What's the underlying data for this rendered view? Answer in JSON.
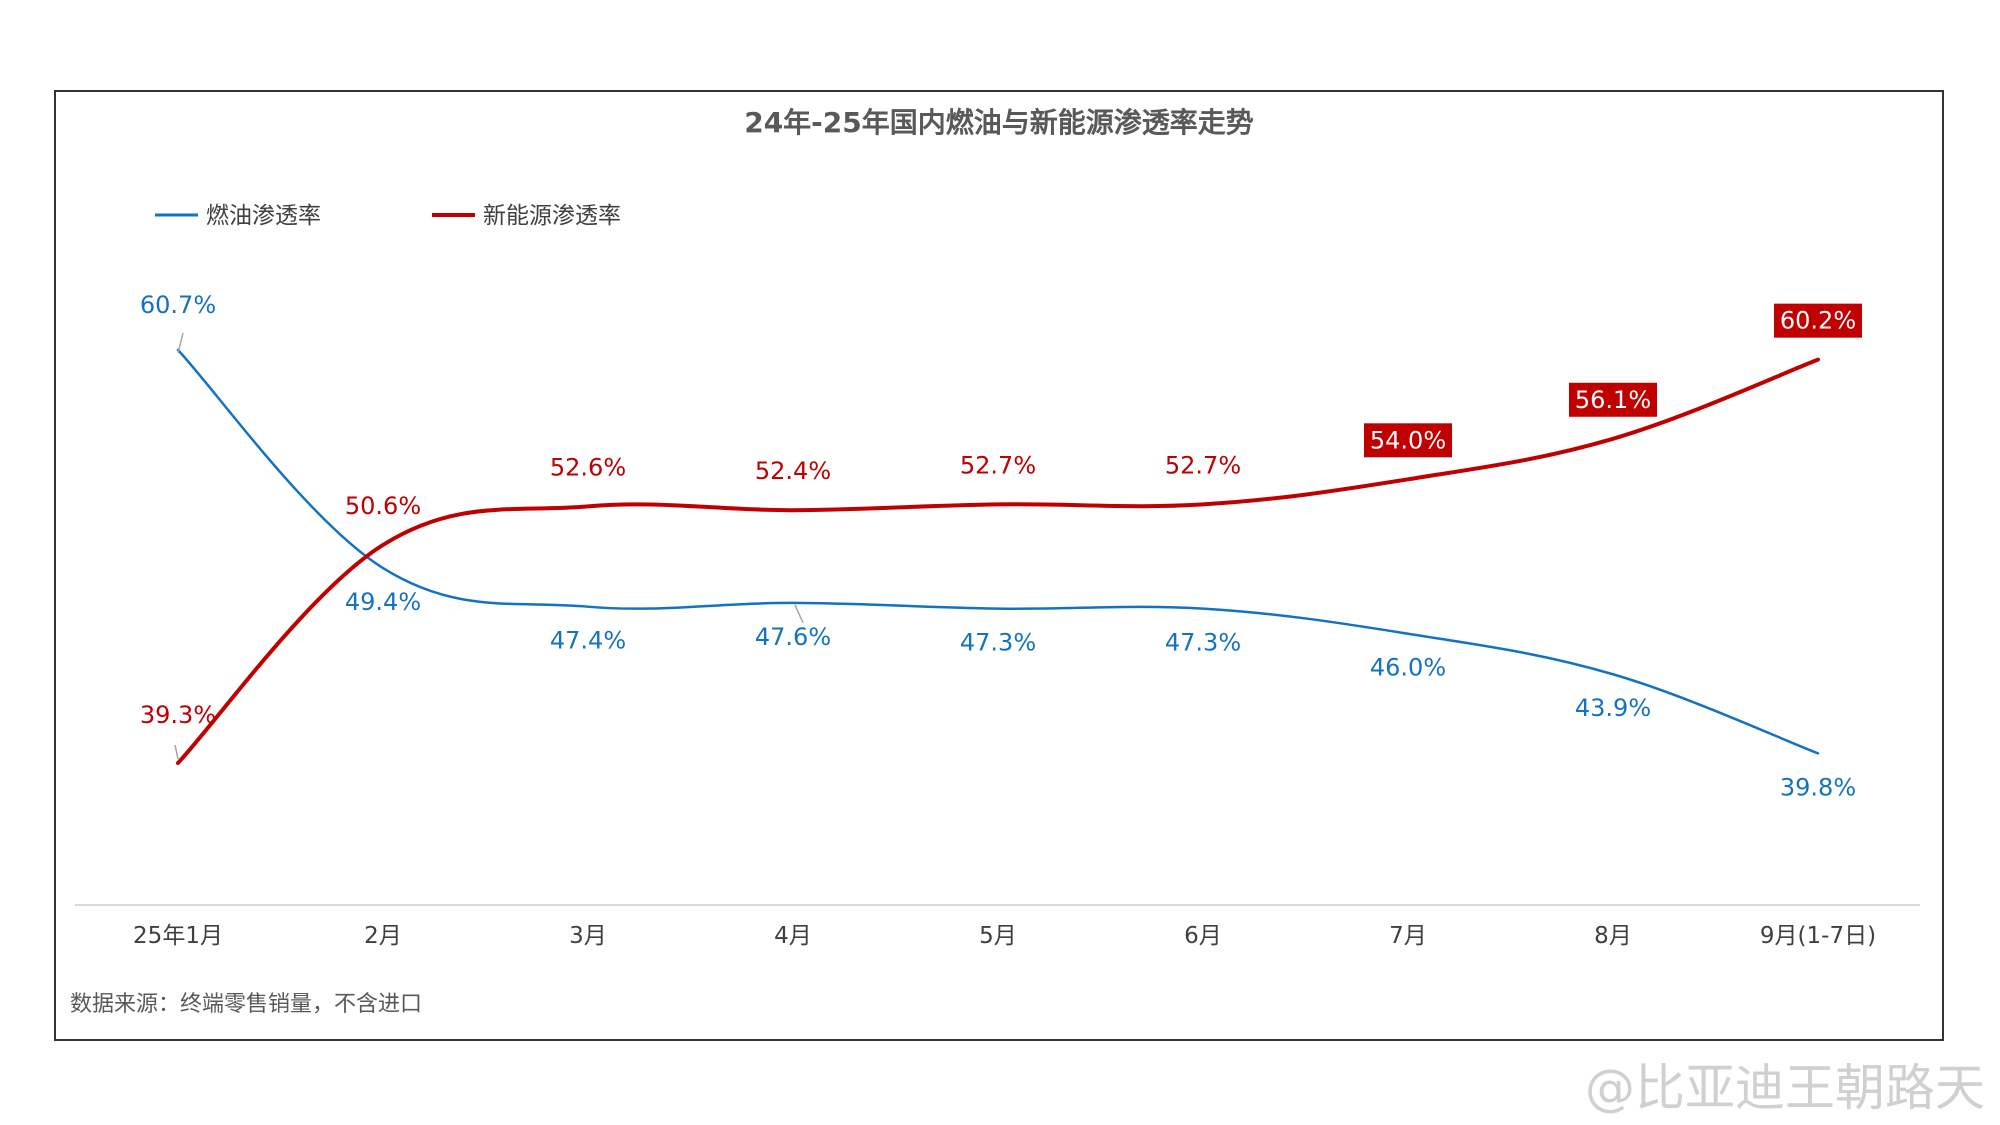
{
  "chart_data": {
    "type": "line",
    "title": "24年-25年国内燃油与新能源渗透率走势",
    "categories": [
      "25年1月",
      "2月",
      "3月",
      "4月",
      "5月",
      "6月",
      "7月",
      "8月",
      "9月(1-7日)"
    ],
    "series": [
      {
        "name": "燃油渗透率",
        "color": "#1473c0",
        "values": [
          60.7,
          49.4,
          47.4,
          47.6,
          47.3,
          47.3,
          46.0,
          43.9,
          39.8
        ],
        "labels": [
          "60.7%",
          "49.4%",
          "47.4%",
          "47.6%",
          "47.3%",
          "47.3%",
          "46.0%",
          "43.9%",
          "39.8%"
        ]
      },
      {
        "name": "新能源渗透率",
        "color": "#c00000",
        "values": [
          39.3,
          50.6,
          52.6,
          52.4,
          52.7,
          52.7,
          54.0,
          56.1,
          60.2
        ],
        "labels": [
          "39.3%",
          "50.6%",
          "52.6%",
          "52.4%",
          "52.7%",
          "52.7%",
          "54.0%",
          "56.1%",
          "60.2%"
        ]
      }
    ],
    "legend_position": "top-left",
    "grid": false,
    "smooth": true
  },
  "source_note": "数据来源：终端零售销量，不含进口",
  "watermark": "@比亚迪王朝路天"
}
